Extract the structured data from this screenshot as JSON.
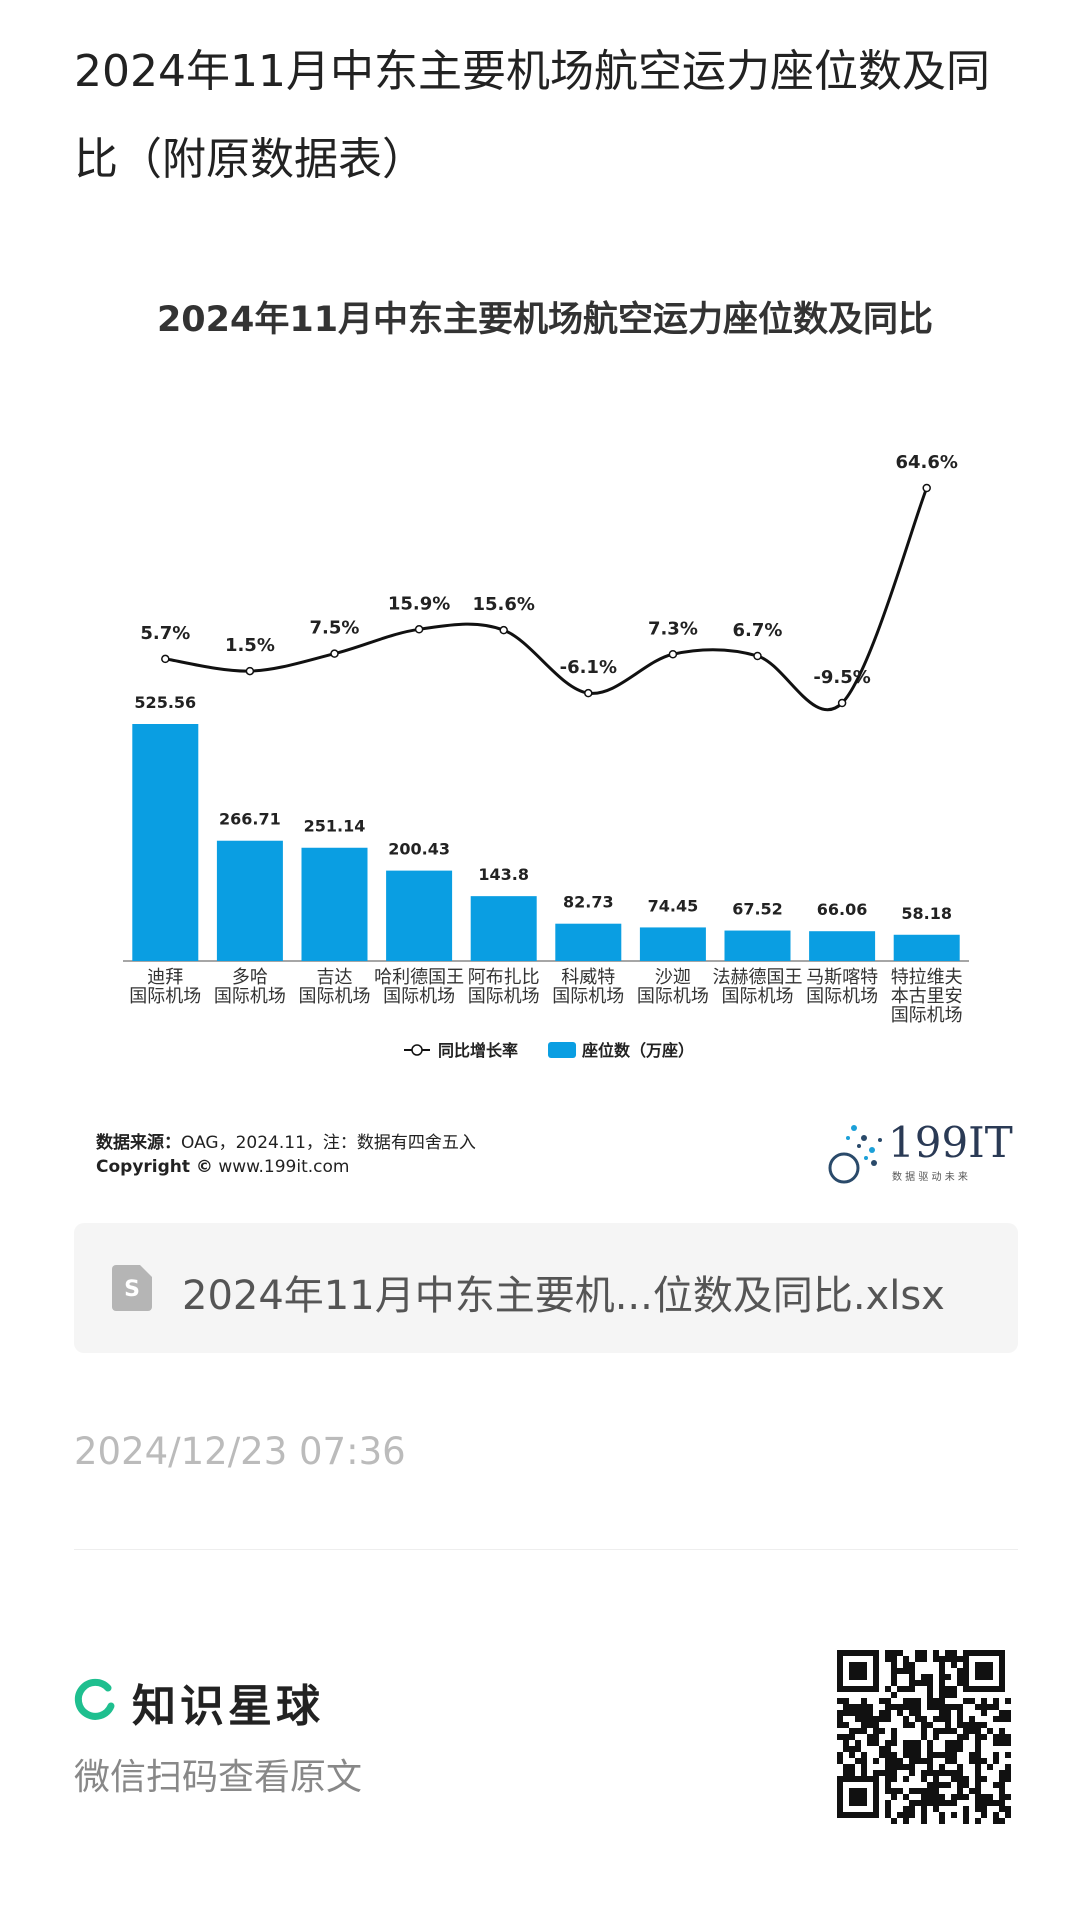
{
  "header": {
    "title": "2024年11月中东主要机场航空运力座位数及同比（附原数据表）"
  },
  "chart_data": {
    "type": "bar-line",
    "title": "2024年11月中东主要机场航空运力座位数及同比",
    "categories": [
      "迪拜\n国际机场",
      "多哈\n国际机场",
      "吉达\n国际机场",
      "哈利德国王\n国际机场",
      "阿布扎比\n国际机场",
      "科威特\n国际机场",
      "沙迦\n国际机场",
      "法赫德国王\n国际机场",
      "马斯喀特\n国际机场",
      "特拉维夫\n本古里安\n国际机场"
    ],
    "series": [
      {
        "name": "座位数（万座）",
        "type": "bar",
        "color": "#0a9ee2",
        "values": [
          525.56,
          266.71,
          251.14,
          200.43,
          143.8,
          82.73,
          74.45,
          67.52,
          66.06,
          58.18
        ]
      },
      {
        "name": "同比增长率",
        "type": "line",
        "axis": "y2",
        "color": "#111111",
        "values": [
          5.7,
          1.5,
          7.5,
          15.9,
          15.6,
          -6.1,
          7.3,
          6.7,
          -9.5,
          64.6
        ],
        "value_labels": [
          "5.7%",
          "1.5%",
          "7.5%",
          "15.9%",
          "15.6%",
          "-6.1%",
          "7.3%",
          "6.7%",
          "-9.5%",
          "64.6%"
        ]
      }
    ],
    "legend": "bottom",
    "source_label": "数据来源：",
    "source": "OAG，2024.11，注：数据有四舍五入",
    "copyright_label": "Copyright ©",
    "copyright": "www.199it.com",
    "logo": "199IT",
    "logo_slogan": "数 据 驱 动 未 来"
  },
  "attachment": {
    "file_name": "2024年11月中东主要机...位数及同比.xlsx"
  },
  "timestamp": "2024/12/23 07:36",
  "footer": {
    "brand": "知识星球",
    "caption": "微信扫码查看原文"
  }
}
